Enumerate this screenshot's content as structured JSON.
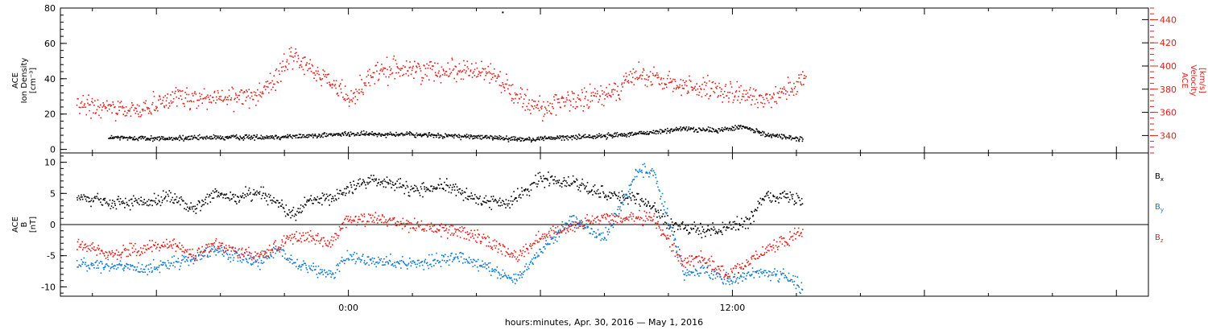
{
  "chart_data": [
    {
      "type": "scatter",
      "panel": "top",
      "left_axis": {
        "label_lines": [
          "ACE",
          "Ion Density",
          "[cm⁻³]"
        ],
        "range": [
          -2,
          80
        ],
        "ticks": [
          0,
          20,
          40,
          60,
          80
        ],
        "tick_labels": [
          "0",
          "20",
          "40",
          "60",
          "80"
        ],
        "color": "#000000"
      },
      "right_axis": {
        "label_lines": [
          "ACE",
          "Velocity",
          "[km/s]"
        ],
        "range": [
          325,
          450
        ],
        "ticks": [
          340,
          360,
          380,
          400,
          420,
          440
        ],
        "tick_labels": [
          "340",
          "360",
          "380",
          "400",
          "420",
          "440"
        ],
        "color": "#e0201c"
      },
      "series": [
        {
          "axis": "left",
          "color": "#000000",
          "x": [
            -7.5,
            -6,
            -4,
            -2,
            0,
            1.5,
            3,
            4.5,
            5.5,
            6.5,
            8,
            9.5,
            10.5,
            11.5,
            12.3,
            13,
            14.2
          ],
          "y": [
            7,
            6.5,
            7,
            7.5,
            9,
            9,
            8,
            7,
            6,
            7,
            8,
            10,
            12,
            11,
            13,
            9,
            6
          ]
        },
        {
          "axis": "right",
          "color": "#e0201c",
          "x": [
            -8.5,
            -7.5,
            -6.8,
            -6.2,
            -5.5,
            -4.5,
            -3.5,
            -2.8,
            -2.2,
            -1.8,
            -1.2,
            -0.6,
            0,
            0.8,
            1.5,
            2.5,
            3.5,
            4.5,
            5.2,
            6,
            7,
            8,
            9,
            10,
            11,
            12,
            13,
            13.7,
            14.3
          ],
          "y": [
            367,
            363,
            362,
            366,
            374,
            372,
            373,
            378,
            392,
            410,
            398,
            388,
            372,
            393,
            398,
            396,
            398,
            394,
            376,
            364,
            370,
            375,
            392,
            386,
            382,
            376,
            373,
            380,
            388
          ]
        }
      ],
      "annotations": [
        {
          "x": 4.8,
          "y": 78,
          "axis": "left"
        }
      ],
      "grid": false
    },
    {
      "type": "scatter",
      "panel": "bottom",
      "left_axis": {
        "label_lines": [
          "ACE",
          "B",
          "[nT]"
        ],
        "range": [
          -11.5,
          11.5
        ],
        "ticks": [
          -10,
          -5,
          0,
          5,
          10
        ],
        "tick_labels": [
          "-10",
          "-5",
          "0",
          "5",
          "10"
        ],
        "zero_line": true,
        "color": "#000000"
      },
      "legend": {
        "placement": "right",
        "entries": [
          {
            "name": "B",
            "sub": "x",
            "color": "#000000"
          },
          {
            "name": "B",
            "sub": "y",
            "color": "#0a78d2"
          },
          {
            "name": "B",
            "sub": "z",
            "color": "#e0201c"
          }
        ]
      },
      "series": [
        {
          "name": "Bx",
          "color": "#000000",
          "x": [
            -8.5,
            -7.5,
            -6.5,
            -5.5,
            -4.8,
            -4.2,
            -3.5,
            -2.8,
            -2.2,
            -1.8,
            -1.2,
            -0.6,
            0,
            0.8,
            1.5,
            2,
            3,
            4,
            5,
            6,
            7,
            7.5,
            8,
            8.8,
            9.5,
            10,
            10.5,
            11,
            12,
            12.5,
            13,
            14.2
          ],
          "y": [
            4.5,
            3.5,
            3.8,
            4.5,
            2.5,
            5,
            4.5,
            5.5,
            3.5,
            1.5,
            4,
            4,
            6,
            7.5,
            6.5,
            5.5,
            6.5,
            4,
            3.5,
            7.5,
            7,
            6,
            5,
            4.5,
            3,
            0,
            -0.5,
            -1,
            0,
            0.5,
            5,
            4
          ]
        },
        {
          "name": "By",
          "color": "#0a78d2",
          "x": [
            -8.5,
            -7.5,
            -6.5,
            -5.5,
            -4.8,
            -4.2,
            -3.5,
            -2.8,
            -2.2,
            -1.8,
            -1.2,
            -0.6,
            0,
            0.8,
            1.5,
            2.5,
            3.5,
            4.5,
            5.2,
            6,
            7,
            8,
            9,
            9.5,
            10.5,
            11,
            11.8,
            12.5,
            13,
            13.5,
            14.2
          ],
          "y": [
            -6,
            -6.5,
            -7,
            -6,
            -5.5,
            -4,
            -5,
            -6,
            -4,
            -6,
            -7,
            -8,
            -5,
            -6,
            -6,
            -6,
            -5,
            -7,
            -9,
            -4,
            1,
            -2,
            8.5,
            9,
            -8,
            -7,
            -9,
            -8,
            -7.5,
            -8,
            -10
          ]
        },
        {
          "name": "Bz",
          "color": "#e0201c",
          "x": [
            -8.5,
            -7.5,
            -6.5,
            -5.5,
            -4.8,
            -4.2,
            -3.5,
            -2.8,
            -2.2,
            -1.8,
            -1.2,
            -0.6,
            0,
            0.8,
            1.5,
            2.5,
            3.5,
            4.5,
            5.2,
            6,
            7,
            8,
            9,
            9.5,
            10.5,
            11,
            11.8,
            12.5,
            13,
            13.5,
            14.2
          ],
          "y": [
            -3,
            -4.5,
            -4,
            -3,
            -5,
            -3,
            -4,
            -5,
            -3,
            -2,
            -2,
            -3,
            1,
            1,
            0.5,
            -0.5,
            -1,
            -3,
            -5,
            -2,
            0,
            1,
            1,
            1,
            -6,
            -5,
            -8,
            -6,
            -4,
            -3,
            -1
          ]
        }
      ],
      "grid": false
    }
  ],
  "x_axis": {
    "range": [
      -9,
      25
    ],
    "major_ticks": [
      0,
      12
    ],
    "tick_labels": [
      "0:00",
      "12:00"
    ],
    "minor_step": 2,
    "label": "hours:minutes, Apr. 30, 2016 — May  1, 2016"
  }
}
